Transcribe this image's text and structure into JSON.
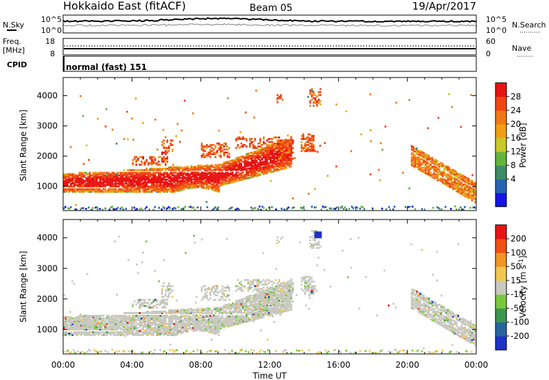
{
  "header": {
    "title": "Hokkaido East (fitACF)",
    "beam": "Beam 05",
    "date": "19/Apr/2017"
  },
  "top_panels": {
    "nsky_label": "N.Sky",
    "nsearch_label": "N.Search",
    "noise_ticks": [
      "10^5",
      "10^0"
    ],
    "freq_label": "Freq.",
    "freq_unit": "[MHz]",
    "freq_ticks": [
      "18",
      "8"
    ],
    "nave_label": "Nave",
    "nave_ticks": [
      "60",
      "0"
    ],
    "cpid_label": "CPID",
    "cpid_text": "normal (fast) 151"
  },
  "chart_data": [
    {
      "type": "heatmap",
      "name": "power",
      "ylabel": "Slant Range [km]",
      "yticks": [
        1000,
        2000,
        3000,
        4000
      ],
      "ylim": [
        200,
        4600
      ],
      "xlim": [
        0,
        24
      ],
      "colorbar_label": "Power [dB]",
      "colorbar_ticks": [
        "28",
        "24",
        "20",
        "16",
        "12",
        "8",
        "4"
      ],
      "colorbar_range": [
        0,
        32
      ],
      "colors": [
        "#1414e6",
        "#2864b4",
        "#3c8c64",
        "#64b43c",
        "#c8c828",
        "#f0a014",
        "#f07814",
        "#f04614",
        "#e61414"
      ]
    },
    {
      "type": "heatmap",
      "name": "velocity",
      "ylabel": "Slant Range [km]",
      "yticks": [
        1000,
        2000,
        3000,
        4000
      ],
      "ylim": [
        200,
        4600
      ],
      "xlim": [
        0,
        24
      ],
      "xlabel": "Time UT",
      "xticks": [
        "00:00",
        "04:00",
        "08:00",
        "12:00",
        "16:00",
        "20:00",
        "00:00"
      ],
      "colorbar_label": "Velocity [m s^-1]",
      "colorbar_ticks": [
        "200",
        "100",
        "50",
        "15",
        "-15",
        "-50",
        "-100",
        "-200"
      ],
      "colors": [
        "#1e32c8",
        "#2864a0",
        "#3c9650",
        "#78c83c",
        "#c8c8c0",
        "#f0c850",
        "#f09628",
        "#f05014",
        "#e61414"
      ]
    }
  ]
}
